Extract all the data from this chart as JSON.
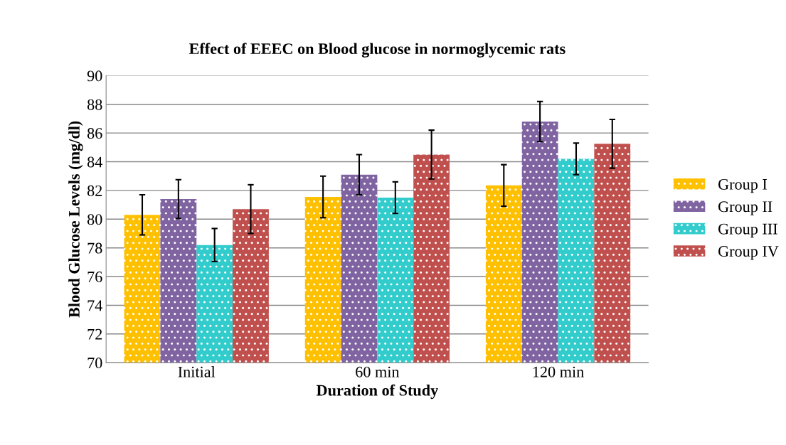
{
  "chart_data": {
    "type": "bar",
    "title": "Effect of EEEC on Blood glucose in normoglycemic rats",
    "xlabel": "Duration of Study",
    "ylabel": "Blood Glucose Levels (mg/dl)",
    "categories": [
      "Initial",
      "60 min",
      "120 min"
    ],
    "series": [
      {
        "name": "Group I",
        "color": "#ffc000",
        "values": [
          80.3,
          81.55,
          82.35
        ],
        "errors": [
          1.4,
          1.45,
          1.45
        ]
      },
      {
        "name": "Group II",
        "color": "#8064a2",
        "values": [
          81.4,
          83.1,
          86.8
        ],
        "errors": [
          1.35,
          1.4,
          1.4
        ]
      },
      {
        "name": "Group III",
        "color": "#33cccc",
        "values": [
          78.2,
          81.5,
          84.2
        ],
        "errors": [
          1.15,
          1.1,
          1.1
        ]
      },
      {
        "name": "Group IV",
        "color": "#c0504d",
        "values": [
          80.7,
          84.5,
          85.25
        ],
        "errors": [
          1.7,
          1.7,
          1.7
        ]
      }
    ],
    "ylim": [
      70,
      90
    ],
    "yticks": [
      70,
      72,
      74,
      76,
      78,
      80,
      82,
      84,
      86,
      88,
      90
    ],
    "grid": "y",
    "legend": "right"
  }
}
